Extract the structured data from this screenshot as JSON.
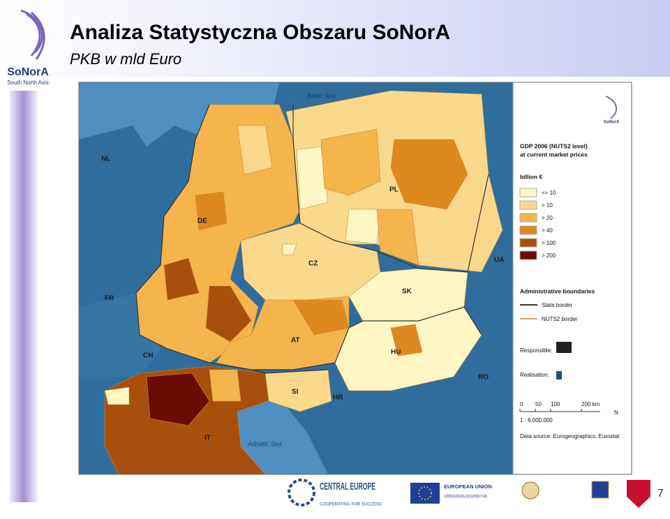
{
  "header": {
    "title": "Analiza Statystyczna Obszaru SoNorA",
    "subtitle": "PKB w mld Euro",
    "logo_name": "SoNorA",
    "logo_tagline": "South North Axis"
  },
  "map": {
    "labels": {
      "baltic_sea": "Baltic Sea",
      "nl": "NL",
      "de": "DE",
      "pl": "PL",
      "cz": "CZ",
      "ua": "UA",
      "fr": "FR",
      "sk": "SK",
      "at": "AT",
      "hu": "HU",
      "ch": "CH",
      "ro": "RO",
      "si": "SI",
      "hr": "HR",
      "it": "IT",
      "adriatic_sea": "Adriatic Sea"
    },
    "legend": {
      "logo": "SoNorA",
      "title": "GDP 2006 (NUTS2 level)",
      "subtitle": "at current market prices",
      "unit": "billion €",
      "classes": [
        {
          "label": "<= 10",
          "color": "#fff6c4"
        },
        {
          "label": "> 10",
          "color": "#fbd98c"
        },
        {
          "label": "> 20",
          "color": "#f5b44c"
        },
        {
          "label": "> 40",
          "color": "#de891f"
        },
        {
          "label": "> 100",
          "color": "#a94f0d"
        },
        {
          "label": "> 200",
          "color": "#6a0b04"
        }
      ],
      "boundaries_title": "Administrative boundaries",
      "state_border": "State border",
      "nuts2_border": "NUTS2 border",
      "responsible": "Responsible:",
      "realisation": "Realisation:",
      "scale_ticks": [
        "0",
        "50",
        "100",
        "200 km"
      ],
      "north": "N",
      "ratio": "1 : 6,000,000",
      "source": "Data source: Eurogeographics, Eurostat"
    }
  },
  "footer": {
    "central_europe": "CENTRAL EUROPE",
    "central_tagline": "COOPERATING FOR SUCCESS",
    "eu": "EUROPEAN UNION",
    "erdf": "EUROPEAN REGIONAL DEVELOPMENT FUND",
    "page": "7"
  }
}
